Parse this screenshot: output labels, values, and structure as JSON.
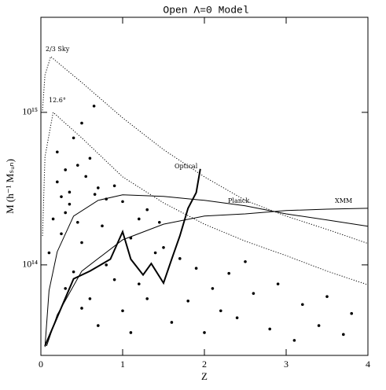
{
  "chart_data": {
    "type": "scatter",
    "title": "Open Λ=0 Model",
    "x_label": "Z",
    "y_label": "M (h⁻¹ Mₛᵤₙ)",
    "log_y": true,
    "xlim": [
      0,
      4
    ],
    "ylim": [
      25500000000000,
      4200000000000000
    ],
    "xticks": [
      0,
      1,
      2,
      3,
      4
    ],
    "yticks": [
      {
        "value": 100000000000000,
        "label": "10¹⁴"
      },
      {
        "value": 1000000000000000,
        "label": "10¹⁵"
      }
    ],
    "series": [
      {
        "name": "2/3 Sky",
        "kind": "line",
        "style": "dotted",
        "color": "#000000",
        "x": [
          0.02,
          0.05,
          0.12,
          0.5,
          1.0,
          1.5,
          2.0,
          2.5,
          3.0,
          3.5,
          4.0
        ],
        "values": [
          1030000000000000,
          1760000000000000,
          2320000000000000,
          1570000000000000,
          920000000000000,
          570000000000000,
          378000000000000,
          265000000000000,
          209000000000000,
          171000000000000,
          138000000000000
        ]
      },
      {
        "name": "12.6°",
        "kind": "line",
        "style": "dotted",
        "color": "#000000",
        "x": [
          0.02,
          0.05,
          0.15,
          0.5,
          1.0,
          1.5,
          2.0,
          2.5,
          3.0,
          3.5,
          4.0
        ],
        "values": [
          155000000000000,
          510000000000000,
          1000000000000000,
          680000000000000,
          378000000000000,
          255000000000000,
          185000000000000,
          143000000000000,
          115000000000000,
          91000000000000,
          74000000000000
        ]
      },
      {
        "name": "Optical",
        "kind": "line",
        "style": "thick",
        "color": "#000000",
        "x": [
          0.05,
          0.4,
          0.6,
          0.85,
          1.0,
          1.1,
          1.25,
          1.35,
          1.5,
          1.6,
          1.7,
          1.8,
          1.9,
          1.95
        ],
        "values": [
          29400000000000,
          81000000000000,
          91000000000000,
          109000000000000,
          165000000000000,
          109000000000000,
          86000000000000,
          102000000000000,
          76000000000000,
          109000000000000,
          155000000000000,
          235000000000000,
          298000000000000,
          426000000000000
        ]
      },
      {
        "name": "Planck",
        "kind": "line",
        "style": "solid",
        "color": "#000000",
        "x": [
          0.05,
          0.1,
          0.2,
          0.4,
          0.7,
          1.0,
          1.5,
          2.0,
          2.5,
          3.0,
          3.5,
          4.0
        ],
        "values": [
          29000000000000,
          68000000000000,
          122000000000000,
          209000000000000,
          265000000000000,
          288000000000000,
          281000000000000,
          265000000000000,
          244000000000000,
          216000000000000,
          197000000000000,
          179000000000000
        ]
      },
      {
        "name": "XMM",
        "kind": "line",
        "style": "solid",
        "color": "#000000",
        "x": [
          0.07,
          0.2,
          0.5,
          1.0,
          1.5,
          2.0,
          2.5,
          3.0,
          3.5,
          4.0
        ],
        "values": [
          29400000000000,
          47000000000000,
          91000000000000,
          146000000000000,
          185000000000000,
          209000000000000,
          216000000000000,
          227000000000000,
          232000000000000,
          235000000000000
        ]
      },
      {
        "kind": "points",
        "color": "#000000",
        "x": [
          0.1,
          0.15,
          0.2,
          0.25,
          0.3,
          0.2,
          0.35,
          0.4,
          0.45,
          0.5,
          0.3,
          0.55,
          0.6,
          0.7,
          0.65,
          0.8,
          0.9,
          1.0,
          0.75,
          0.5,
          0.4,
          1.2,
          1.1,
          1.3,
          1.5,
          1.4,
          0.6,
          0.9,
          1.7,
          1.9,
          2.1,
          2.3,
          2.6,
          2.9,
          3.2,
          3.5,
          3.8,
          1.0,
          1.6,
          2.0,
          2.4,
          2.8,
          3.1,
          3.4,
          3.7,
          0.3,
          0.5,
          0.7,
          1.1,
          1.3,
          1.8,
          2.2,
          0.8,
          1.2,
          0.25,
          0.45,
          0.66,
          0.35,
          1.45,
          2.5
        ],
        "values": [
          120000000000000,
          200000000000000,
          350000000000000,
          280000000000000,
          420000000000000,
          550000000000000,
          300000000000000,
          680000000000000,
          450000000000000,
          850000000000000,
          220000000000000,
          380000000000000,
          500000000000000,
          320000000000000,
          1100000000000000,
          270000000000000,
          330000000000000,
          260000000000000,
          180000000000000,
          140000000000000,
          90000000000000,
          200000000000000,
          150000000000000,
          230000000000000,
          130000000000000,
          120000000000000,
          60000000000000,
          80000000000000,
          110000000000000,
          95000000000000,
          70000000000000,
          88000000000000,
          65000000000000,
          75000000000000,
          55000000000000,
          62000000000000,
          48000000000000,
          50000000000000,
          42000000000000,
          36000000000000,
          45000000000000,
          38000000000000,
          32000000000000,
          40000000000000,
          35000000000000,
          70000000000000,
          52000000000000,
          40000000000000,
          36000000000000,
          60000000000000,
          58000000000000,
          50000000000000,
          100000000000000,
          75000000000000,
          160000000000000,
          190000000000000,
          290000000000000,
          250000000000000,
          190000000000000,
          105000000000000
        ]
      }
    ]
  }
}
